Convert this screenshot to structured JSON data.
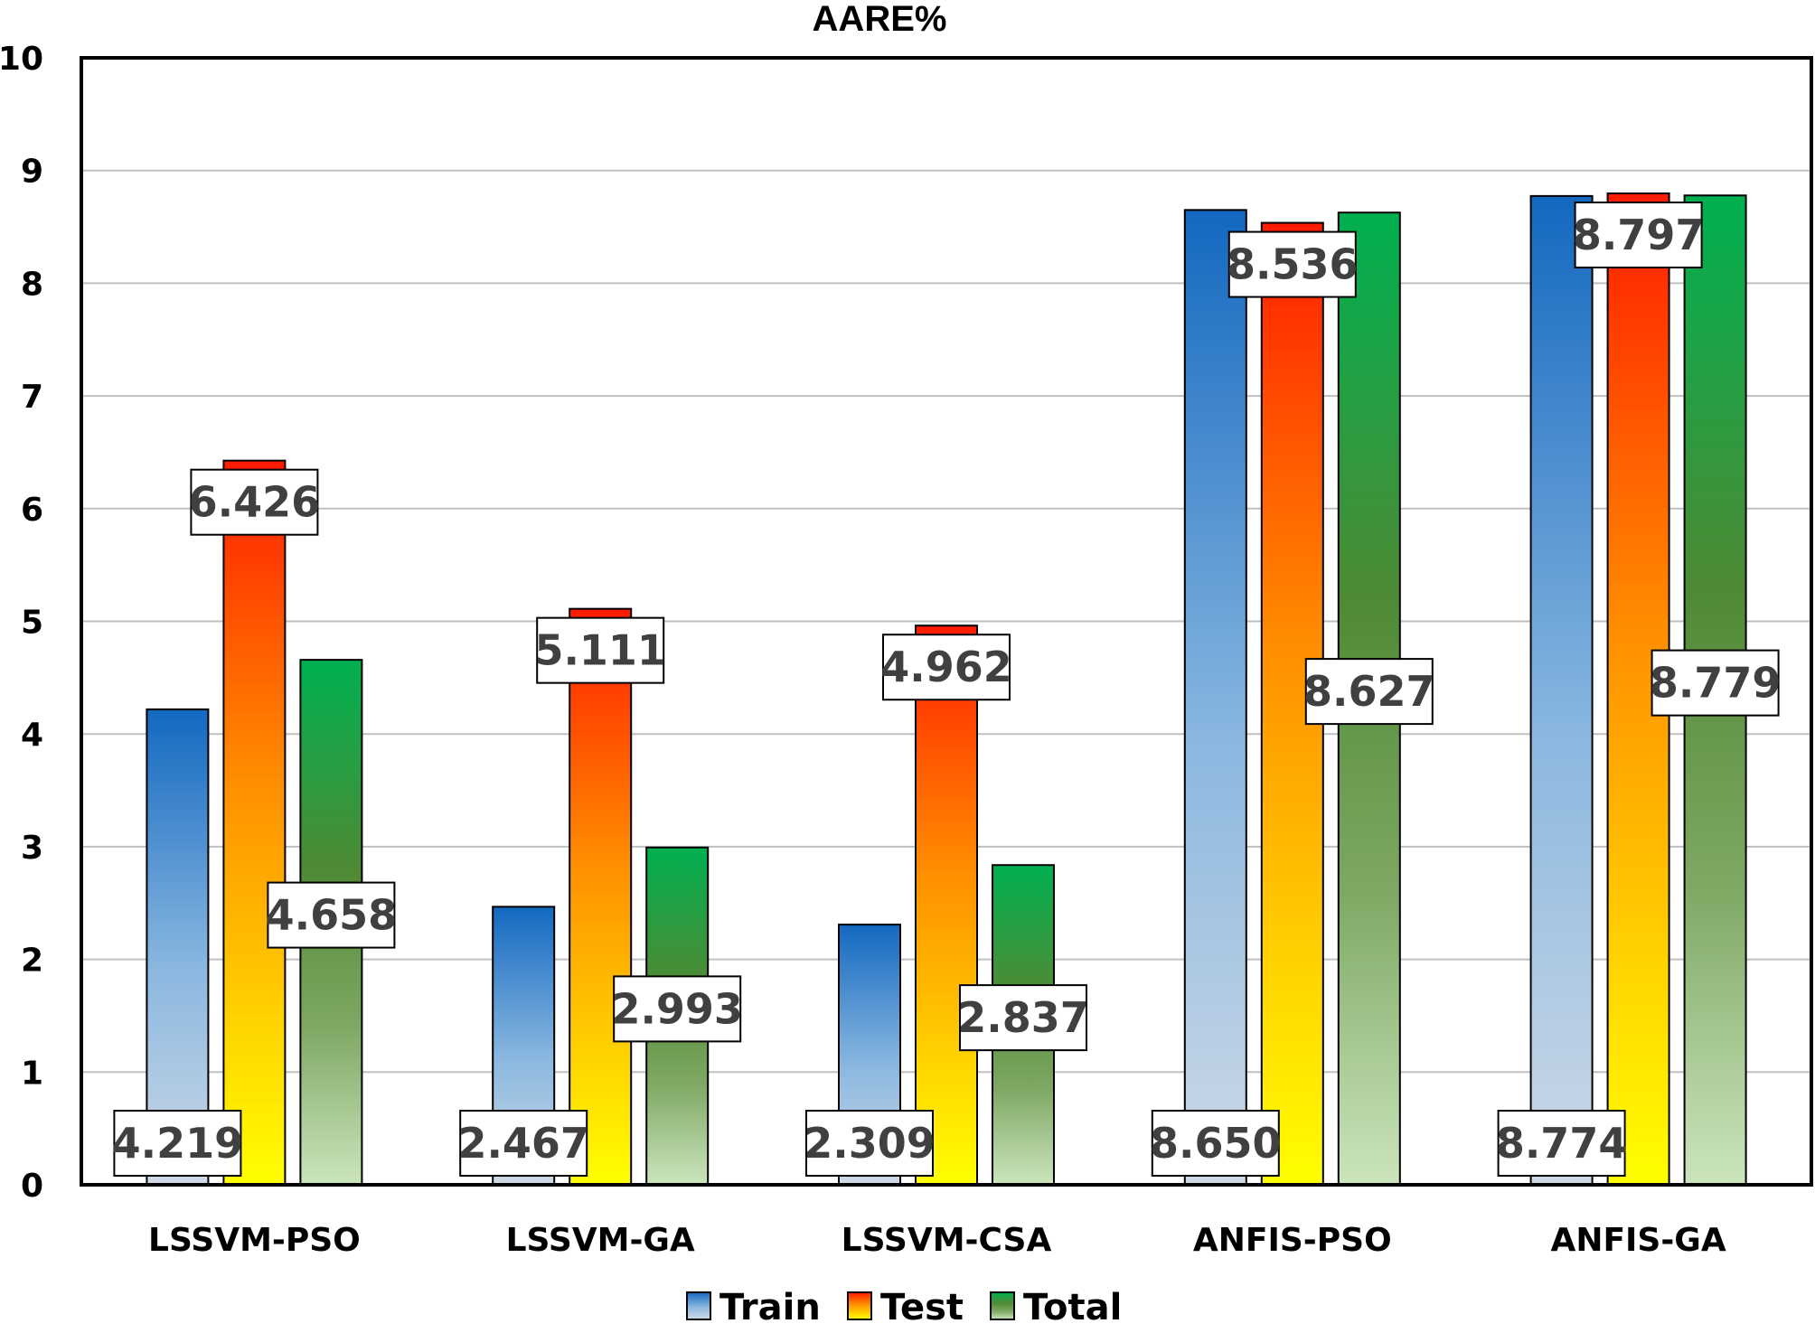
{
  "chart_data": {
    "type": "bar",
    "title": "AARE%",
    "xlabel": "",
    "ylabel": "",
    "ylim": [
      0,
      10
    ],
    "yticks": [
      "0",
      "1",
      "2",
      "3",
      "4",
      "5",
      "6",
      "7",
      "8",
      "9",
      "10"
    ],
    "grid": true,
    "legend_position": "bottom-center",
    "categories": [
      "LSSVM-PSO",
      "LSSVM-GA",
      "LSSVM-CSA",
      "ANFIS-PSO",
      "ANFIS-GA"
    ],
    "series": [
      {
        "name": "Train",
        "values": [
          4.219,
          2.467,
          2.309,
          8.65,
          8.774
        ],
        "labels": [
          "4.219",
          "2.467",
          "2.309",
          "8.650",
          "8.774"
        ],
        "label_position": "base"
      },
      {
        "name": "Test",
        "values": [
          6.426,
          5.111,
          4.962,
          8.536,
          8.797
        ],
        "labels": [
          "6.426",
          "5.111",
          "4.962",
          "8.536",
          "8.797"
        ],
        "label_position": "top"
      },
      {
        "name": "Total",
        "values": [
          4.658,
          2.993,
          2.837,
          8.627,
          8.779
        ],
        "labels": [
          "4.658",
          "2.993",
          "2.837",
          "8.627",
          "8.779"
        ],
        "label_position": "middle"
      }
    ],
    "colors": {
      "Train": {
        "top": "#1368c0",
        "bottom": "#c8d7e8"
      },
      "Test": {
        "top": "#ff0000",
        "mid": "#ff9b00",
        "bottom": "#ffff00"
      },
      "Total": {
        "top": "#00b050",
        "mid": "#548235",
        "bottom": "#c6e0b4"
      }
    }
  }
}
